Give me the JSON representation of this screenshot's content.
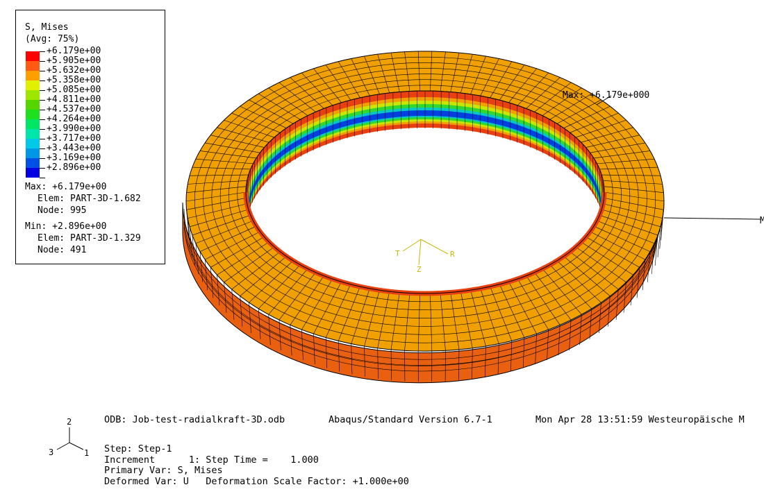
{
  "legend": {
    "title": "S, Mises",
    "subtitle": "(Avg: 75%)",
    "levels": [
      {
        "label": "+6.179e+00",
        "color": "#ff0000"
      },
      {
        "label": "+5.905e+00",
        "color": "#ff5a14"
      },
      {
        "label": "+5.632e+00",
        "color": "#ff9e00"
      },
      {
        "label": "+5.358e+00",
        "color": "#e0f000"
      },
      {
        "label": "+5.085e+00",
        "color": "#9ee600"
      },
      {
        "label": "+4.811e+00",
        "color": "#56d400"
      },
      {
        "label": "+4.537e+00",
        "color": "#1ee01e"
      },
      {
        "label": "+4.264e+00",
        "color": "#00e664"
      },
      {
        "label": "+3.990e+00",
        "color": "#00e6a8"
      },
      {
        "label": "+3.717e+00",
        "color": "#00c8e6"
      },
      {
        "label": "+3.443e+00",
        "color": "#0096e6"
      },
      {
        "label": "+3.169e+00",
        "color": "#0050e6"
      },
      {
        "label": "+2.896e+00",
        "color": "#0000e0"
      }
    ],
    "max": {
      "value": "Max: +6.179e+00",
      "elem": "Elem: PART-3D-1.682",
      "node": "Node: 995"
    },
    "min": {
      "value": "Min: +2.896e+00",
      "elem": "Elem: PART-3D-1.329",
      "node": "Node: 491"
    }
  },
  "viewport": {
    "max_annotation": "Max: +6.179e+000",
    "edge_label": "M",
    "triad_local": {
      "t": "T",
      "r": "R",
      "z": "Z"
    },
    "triad_global": {
      "a": "2",
      "b": "3",
      "c": "1"
    },
    "colors": {
      "top_face": "#f0a000",
      "outer_wall": "#e86010",
      "inner_red": "#e84010",
      "triad": "#c8b400"
    }
  },
  "info": {
    "odb": "ODB: Job-test-radialkraft-3D.odb",
    "version": "Abaqus/Standard Version 6.7-1",
    "date": "Mon Apr 28 13:51:59 Westeuropäische M",
    "step": "Step: Step-1",
    "increment": "Increment      1: Step Time =    1.000",
    "primary": "Primary Var: S, Mises",
    "deformed": "Deformed Var: U   Deformation Scale Factor: +1.000e+00"
  }
}
